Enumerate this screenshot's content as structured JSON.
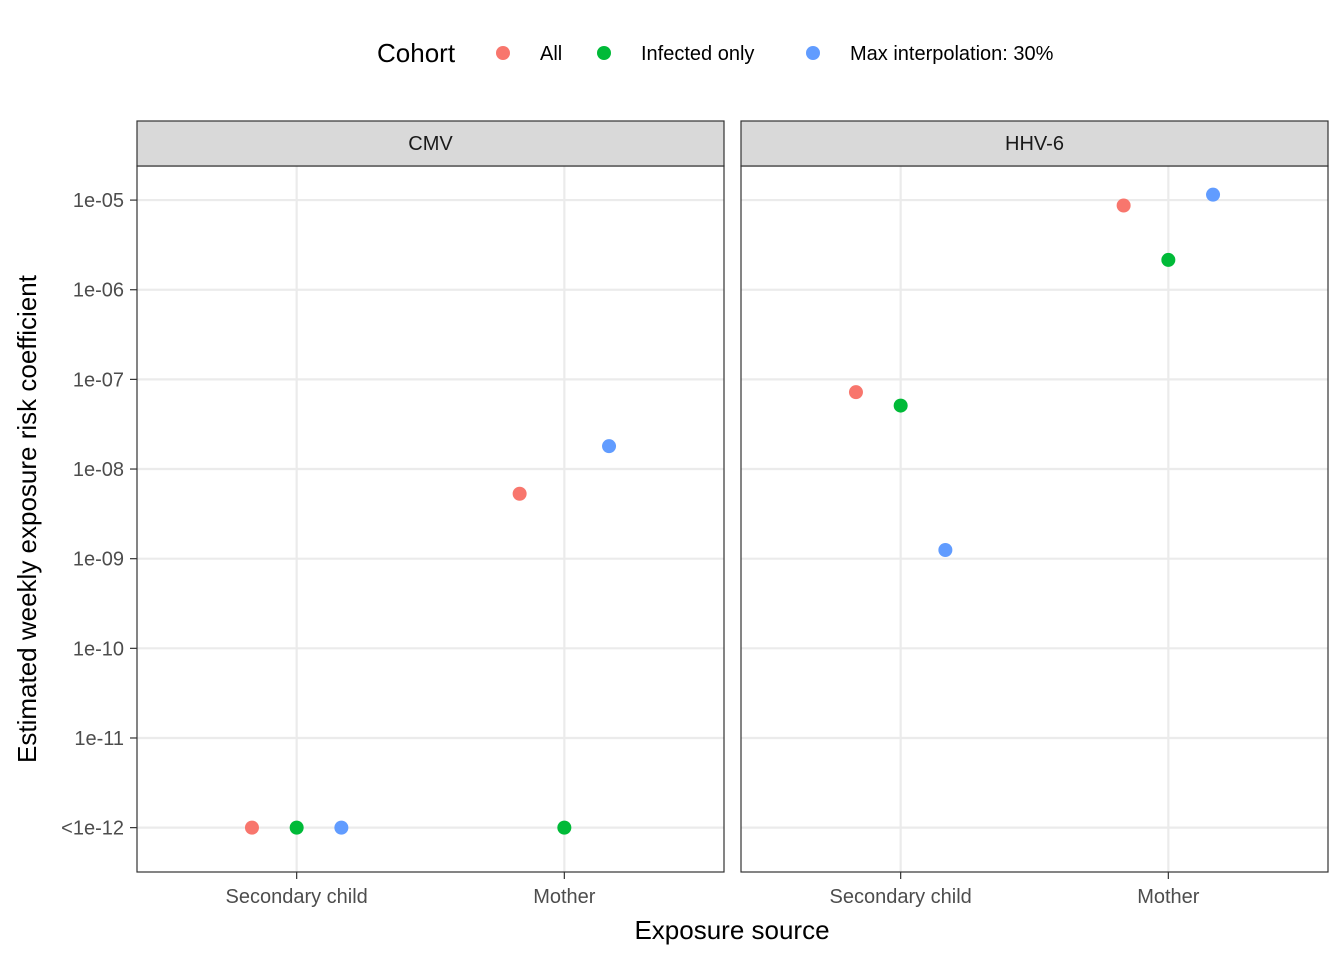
{
  "chart_data": {
    "type": "scatter",
    "xlabel": "Exposure source",
    "ylabel": "Estimated weekly exposure risk coefficient",
    "y_scale": "log10",
    "y_ticks": [
      {
        "value": 1e-12,
        "label": "<1e-12"
      },
      {
        "value": 1e-11,
        "label": "1e-11"
      },
      {
        "value": 1e-10,
        "label": "1e-10"
      },
      {
        "value": 1e-09,
        "label": "1e-09"
      },
      {
        "value": 1e-08,
        "label": "1e-08"
      },
      {
        "value": 1e-07,
        "label": "1e-07"
      },
      {
        "value": 1e-06,
        "label": "1e-06"
      },
      {
        "value": 1e-05,
        "label": "1e-05"
      }
    ],
    "ylim": [
      3.2e-13,
      2.4e-05
    ],
    "categories": [
      "Secondary child",
      "Mother"
    ],
    "grid": true,
    "legend": {
      "title": "Cohort",
      "placement": "top",
      "entries": [
        {
          "name": "All",
          "color": "#F8766D"
        },
        {
          "name": "Infected only",
          "color": "#00BA38"
        },
        {
          "name": "Max interpolation: 30%",
          "color": "#619CFF"
        }
      ]
    },
    "panels": [
      {
        "title": "CMV",
        "points": [
          {
            "category": "Secondary child",
            "cohort": "All",
            "y": 1e-12
          },
          {
            "category": "Secondary child",
            "cohort": "Infected only",
            "y": 1e-12
          },
          {
            "category": "Secondary child",
            "cohort": "Max interpolation: 30%",
            "y": 1e-12
          },
          {
            "category": "Mother",
            "cohort": "All",
            "y": 5.3e-09
          },
          {
            "category": "Mother",
            "cohort": "Infected only",
            "y": 1e-12
          },
          {
            "category": "Mother",
            "cohort": "Max interpolation: 30%",
            "y": 1.8e-08
          }
        ]
      },
      {
        "title": "HHV-6",
        "points": [
          {
            "category": "Secondary child",
            "cohort": "All",
            "y": 7.2e-08
          },
          {
            "category": "Secondary child",
            "cohort": "Infected only",
            "y": 5.1e-08
          },
          {
            "category": "Secondary child",
            "cohort": "Max interpolation: 30%",
            "y": 1.25e-09
          },
          {
            "category": "Mother",
            "cohort": "All",
            "y": 8.7e-06
          },
          {
            "category": "Mother",
            "cohort": "Infected only",
            "y": 2.15e-06
          },
          {
            "category": "Mother",
            "cohort": "Max interpolation: 30%",
            "y": 1.15e-05
          }
        ]
      }
    ]
  }
}
